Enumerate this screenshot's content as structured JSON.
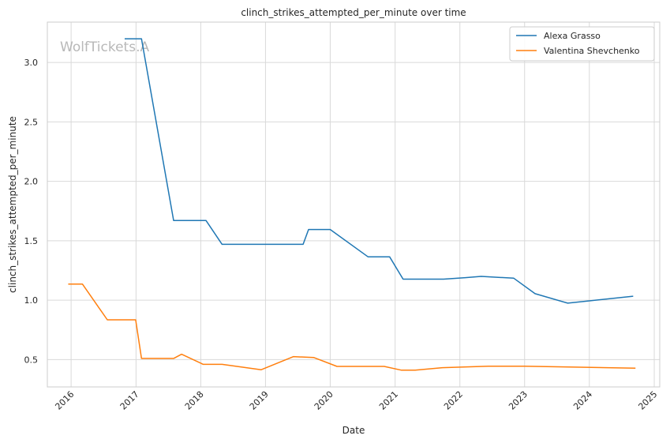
{
  "chart_data": {
    "type": "line",
    "title": "clinch_strikes_attempted_per_minute over time",
    "xlabel": "Date",
    "ylabel": "clinch_strikes_attempted_per_minute",
    "watermark": "WolfTickets.A",
    "grid": true,
    "legend_position": "top-right",
    "x_ticks": [
      "2016",
      "2017",
      "2018",
      "2019",
      "2020",
      "2021",
      "2022",
      "2023",
      "2024",
      "2025"
    ],
    "y_ticks": [
      "0.5",
      "1.0",
      "1.5",
      "2.0",
      "2.5",
      "3.0"
    ],
    "xlim": [
      "2015-08-20",
      "2025-02-01"
    ],
    "ylim": [
      0.27,
      3.34
    ],
    "series": [
      {
        "name": "Alexa Grasso",
        "color": "#1f77b4",
        "x": [
          "2016-11-01",
          "2017-02-01",
          "2017-08-01",
          "2018-01-31",
          "2018-05-01",
          "2019-04-01",
          "2019-08-01",
          "2019-09-01",
          "2020-01-01",
          "2020-08-01",
          "2020-12-01",
          "2021-02-15",
          "2021-05-01",
          "2021-10-01",
          "2022-02-01",
          "2022-05-01",
          "2022-11-01",
          "2023-03-01",
          "2023-09-01",
          "2024-09-01"
        ],
        "y": [
          3.2,
          3.2,
          1.67,
          1.67,
          1.47,
          1.47,
          1.47,
          1.595,
          1.595,
          1.365,
          1.365,
          1.177,
          1.177,
          1.177,
          1.19,
          1.2,
          1.185,
          1.055,
          0.975,
          1.033
        ]
      },
      {
        "name": "Valentina Shevchenko",
        "color": "#ff7f0e",
        "x": [
          "2015-12-19",
          "2016-03-05",
          "2016-07-23",
          "2016-12-30",
          "2017-02-01",
          "2017-08-01",
          "2017-09-15",
          "2018-01-15",
          "2018-05-01",
          "2018-12-08",
          "2019-06-08",
          "2019-10-01",
          "2020-02-08",
          "2020-10-31",
          "2021-02-06",
          "2021-04-24",
          "2021-09-25",
          "2022-06-11",
          "2023-01-01",
          "2024-09-14"
        ],
        "y": [
          1.135,
          1.135,
          0.835,
          0.835,
          0.51,
          0.51,
          0.545,
          0.46,
          0.46,
          0.415,
          0.525,
          0.517,
          0.443,
          0.443,
          0.411,
          0.411,
          0.432,
          0.445,
          0.444,
          0.428
        ]
      }
    ]
  }
}
